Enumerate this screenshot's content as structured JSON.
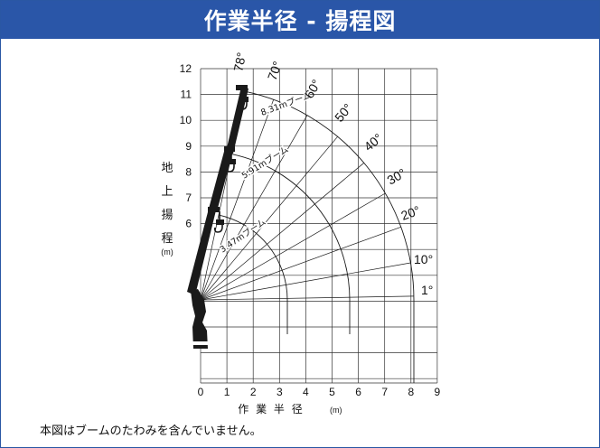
{
  "title": "作業半径 - 揚程図",
  "y_axis": {
    "label_chars": [
      "地",
      "上",
      "揚",
      "程"
    ],
    "unit": "(m)",
    "ticks": [
      "12",
      "11",
      "10",
      "9",
      "8",
      "7",
      "6"
    ]
  },
  "x_axis": {
    "label": "作 業 半 径",
    "unit": "(m)",
    "ticks": [
      "0",
      "1",
      "2",
      "3",
      "4",
      "5",
      "6",
      "7",
      "8",
      "9"
    ]
  },
  "booms": [
    {
      "label": "3.47mブーム",
      "length": 3.47
    },
    {
      "label": "5.91mブーム",
      "length": 5.91
    },
    {
      "label": "8.31mブーム",
      "length": 8.31
    }
  ],
  "angles": [
    "1°",
    "10°",
    "20°",
    "30°",
    "40°",
    "50°",
    "60°",
    "70°",
    "78°"
  ],
  "note": "本図はブームのたわみを含んでいません。",
  "colors": {
    "header_bg": "#2a56a8",
    "header_text": "#ffffff",
    "grid": "#333333",
    "boom": "#1a1a1a"
  }
}
